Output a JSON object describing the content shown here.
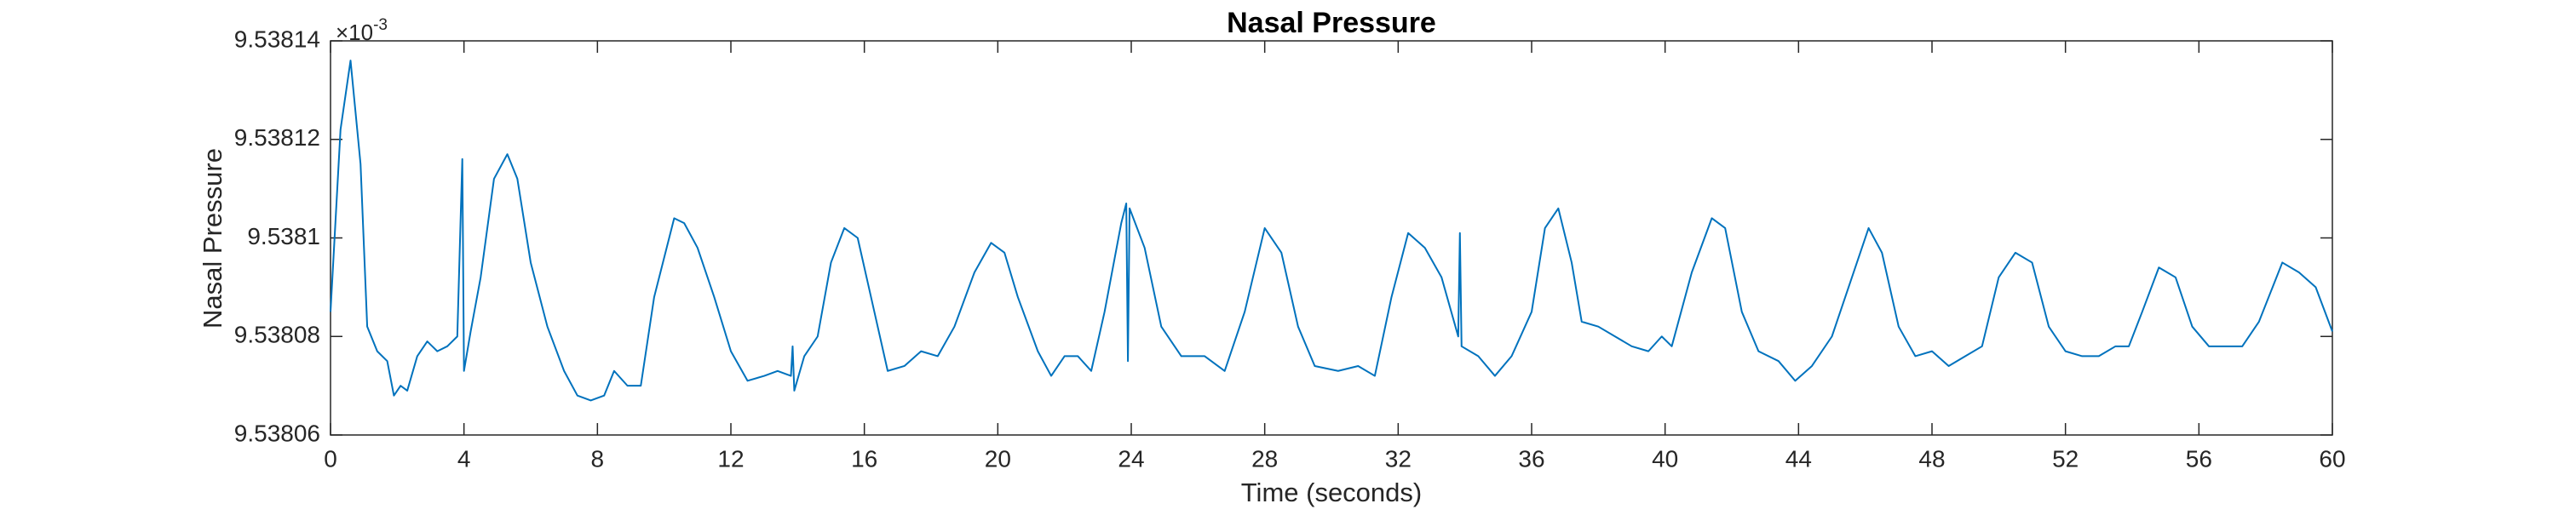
{
  "chart_data": {
    "type": "line",
    "title": "Nasal Pressure",
    "x_label": "Time (seconds)",
    "y_label": "Nasal Pressure",
    "y_multiplier_base": "×10",
    "y_multiplier_exponent": "-3",
    "xlim": [
      0,
      60
    ],
    "xticks": [
      0,
      4,
      8,
      12,
      16,
      20,
      24,
      28,
      32,
      36,
      40,
      44,
      48,
      52,
      56,
      60
    ],
    "ylim": [
      9.53806,
      9.53814
    ],
    "yticks": [
      9.53806,
      9.53808,
      9.5381,
      9.53812,
      9.53814
    ],
    "grid": false,
    "series": [
      {
        "color": "#0072bd",
        "x": [
          0,
          0.3,
          0.6,
          0.9,
          1.1,
          1.4,
          1.7,
          1.9,
          2.1,
          2.3,
          2.6,
          2.9,
          3.2,
          3.5,
          3.8,
          3.95,
          4.0,
          4.2,
          4.5,
          4.9,
          5.3,
          5.6,
          6.0,
          6.5,
          7.0,
          7.4,
          7.8,
          8.2,
          8.5,
          8.9,
          9.3,
          9.7,
          10.3,
          10.6,
          11.0,
          11.5,
          12.0,
          12.5,
          13.0,
          13.4,
          13.8,
          13.85,
          13.9,
          14.2,
          14.6,
          15.0,
          15.4,
          15.8,
          16.3,
          16.7,
          17.2,
          17.7,
          18.2,
          18.7,
          19.3,
          19.8,
          20.2,
          20.6,
          21.2,
          21.6,
          22.0,
          22.4,
          22.8,
          23.2,
          23.7,
          23.85,
          23.9,
          23.95,
          24.4,
          24.9,
          25.5,
          26.2,
          26.8,
          27.4,
          28.0,
          28.5,
          29.0,
          29.5,
          30.2,
          30.8,
          31.3,
          31.8,
          32.3,
          32.8,
          33.3,
          33.8,
          33.85,
          33.9,
          34.4,
          34.9,
          35.4,
          36.0,
          36.4,
          36.8,
          37.2,
          37.5,
          38.0,
          38.5,
          39.0,
          39.5,
          39.9,
          40.2,
          40.8,
          41.4,
          41.8,
          42.3,
          42.8,
          43.4,
          43.9,
          44.4,
          45.0,
          45.6,
          46.1,
          46.5,
          47.0,
          47.5,
          48.0,
          48.5,
          49.0,
          49.5,
          50.0,
          50.5,
          51.0,
          51.5,
          52.0,
          52.5,
          53.0,
          53.5,
          53.9,
          54.3,
          54.8,
          55.3,
          55.8,
          56.3,
          56.8,
          57.3,
          57.8,
          58.5,
          59.0,
          59.5,
          60
        ],
        "values": [
          9.538085,
          9.538122,
          9.538136,
          9.538115,
          9.538082,
          9.538077,
          9.538075,
          9.538068,
          9.53807,
          9.538069,
          9.538076,
          9.538079,
          9.538077,
          9.538078,
          9.53808,
          9.538116,
          9.538073,
          9.538081,
          9.538092,
          9.538112,
          9.538117,
          9.538112,
          9.538095,
          9.538082,
          9.538073,
          9.538068,
          9.538067,
          9.538068,
          9.538073,
          9.53807,
          9.53807,
          9.538088,
          9.538104,
          9.538103,
          9.538098,
          9.538088,
          9.538077,
          9.538071,
          9.538072,
          9.538073,
          9.538072,
          9.538078,
          9.538069,
          9.538076,
          9.53808,
          9.538095,
          9.538102,
          9.5381,
          9.538085,
          9.538073,
          9.538074,
          9.538077,
          9.538076,
          9.538082,
          9.538093,
          9.538099,
          9.538097,
          9.538088,
          9.538077,
          9.538072,
          9.538076,
          9.538076,
          9.538073,
          9.538085,
          9.538103,
          9.538107,
          9.538075,
          9.538106,
          9.538098,
          9.538082,
          9.538076,
          9.538076,
          9.538073,
          9.538085,
          9.538102,
          9.538097,
          9.538082,
          9.538074,
          9.538073,
          9.538074,
          9.538072,
          9.538088,
          9.538101,
          9.538098,
          9.538092,
          9.53808,
          9.538101,
          9.538078,
          9.538076,
          9.538072,
          9.538076,
          9.538085,
          9.538102,
          9.538106,
          9.538095,
          9.538083,
          9.538082,
          9.53808,
          9.538078,
          9.538077,
          9.53808,
          9.538078,
          9.538093,
          9.538104,
          9.538102,
          9.538085,
          9.538077,
          9.538075,
          9.538071,
          9.538074,
          9.53808,
          9.538092,
          9.538102,
          9.538097,
          9.538082,
          9.538076,
          9.538077,
          9.538074,
          9.538076,
          9.538078,
          9.538092,
          9.538097,
          9.538095,
          9.538082,
          9.538077,
          9.538076,
          9.538076,
          9.538078,
          9.538078,
          9.538085,
          9.538094,
          9.538092,
          9.538082,
          9.538078,
          9.538078,
          9.538078,
          9.538083,
          9.538095,
          9.538093,
          9.53809,
          9.538081
        ]
      }
    ]
  }
}
